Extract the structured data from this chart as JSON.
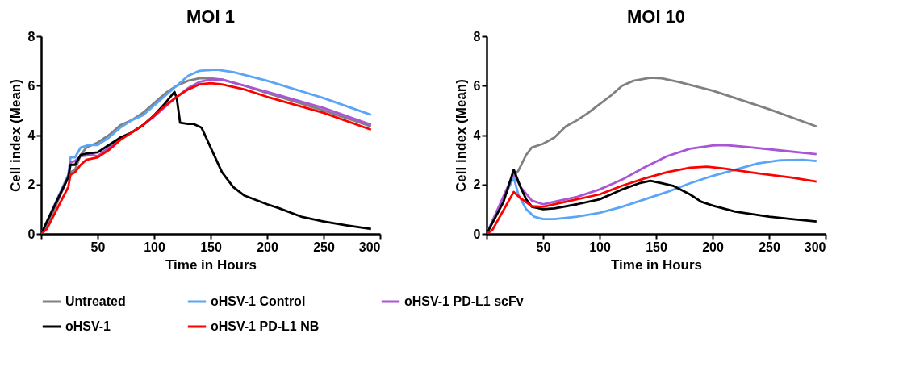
{
  "chart_data": [
    {
      "type": "line",
      "title": "MOI 1",
      "xlabel": "Time in Hours",
      "ylabel": "Cell index (Mean)",
      "xlim": [
        0,
        300
      ],
      "ylim": [
        0,
        8
      ],
      "xticks": [
        {
          "value": 0,
          "label": null
        },
        50,
        100,
        150,
        200,
        250,
        300
      ],
      "yticks": [
        0,
        2,
        4,
        6,
        8
      ],
      "grid": false,
      "legend": "bottom",
      "line_style": "solid",
      "marker": "none",
      "series": [
        {
          "name": "Untreated",
          "color": "#808080",
          "x": [
            0,
            5,
            24,
            26,
            30,
            35,
            40,
            50,
            60,
            70,
            80,
            90,
            100,
            110,
            120,
            130,
            140,
            150,
            160,
            180,
            200,
            250,
            292
          ],
          "values": [
            0,
            0.3,
            2.3,
            2.5,
            2.6,
            3.2,
            3.5,
            3.7,
            4.0,
            4.4,
            4.6,
            4.9,
            5.3,
            5.7,
            6.0,
            6.2,
            6.3,
            6.3,
            6.25,
            6.0,
            5.7,
            5.0,
            4.35
          ]
        },
        {
          "name": "oHSV-1 Control",
          "color": "#5aa5f5",
          "x": [
            0,
            24,
            26,
            30,
            35,
            42,
            50,
            60,
            70,
            80,
            90,
            100,
            110,
            120,
            130,
            140,
            155,
            170,
            200,
            250,
            292
          ],
          "values": [
            0,
            2.4,
            3.1,
            3.1,
            3.5,
            3.6,
            3.6,
            3.9,
            4.3,
            4.6,
            4.8,
            5.2,
            5.6,
            6.0,
            6.4,
            6.6,
            6.65,
            6.55,
            6.2,
            5.5,
            4.82
          ]
        },
        {
          "name": "oHSV-1 PD-L1 scFv",
          "color": "#a855d6",
          "x": [
            0,
            24,
            26,
            30,
            35,
            45,
            50,
            60,
            70,
            80,
            90,
            100,
            110,
            120,
            130,
            140,
            150,
            160,
            180,
            200,
            250,
            292
          ],
          "values": [
            0,
            2.3,
            2.9,
            2.95,
            3.15,
            3.2,
            3.15,
            3.5,
            3.9,
            4.1,
            4.4,
            4.75,
            5.15,
            5.55,
            5.9,
            6.15,
            6.25,
            6.25,
            6.0,
            5.75,
            5.1,
            4.42
          ]
        },
        {
          "name": "oHSV-1",
          "color": "#000000",
          "x": [
            0,
            24,
            26,
            30,
            35,
            40,
            50,
            60,
            70,
            80,
            90,
            100,
            110,
            118,
            120,
            123,
            130,
            135,
            142,
            150,
            160,
            170,
            180,
            200,
            210,
            230,
            250,
            270,
            292
          ],
          "values": [
            0,
            2.3,
            2.8,
            2.8,
            3.2,
            3.25,
            3.3,
            3.6,
            3.9,
            4.1,
            4.4,
            4.8,
            5.3,
            5.75,
            5.5,
            4.5,
            4.45,
            4.45,
            4.3,
            3.5,
            2.5,
            1.9,
            1.55,
            1.2,
            1.05,
            0.7,
            0.5,
            0.35,
            0.2
          ]
        },
        {
          "name": "oHSV-1 PD-L1 NB",
          "color": "#ff0000",
          "x": [
            0,
            5,
            24,
            26,
            30,
            35,
            40,
            50,
            60,
            70,
            80,
            90,
            100,
            110,
            120,
            130,
            140,
            150,
            160,
            180,
            200,
            250,
            292
          ],
          "values": [
            0,
            0.2,
            1.9,
            2.4,
            2.5,
            2.8,
            3.0,
            3.1,
            3.4,
            3.8,
            4.1,
            4.4,
            4.8,
            5.2,
            5.55,
            5.85,
            6.05,
            6.1,
            6.05,
            5.85,
            5.55,
            4.9,
            4.22
          ]
        }
      ]
    },
    {
      "type": "line",
      "title": "MOI 10",
      "xlabel": "Time in Hours",
      "ylabel": "Cell index (Mean)",
      "xlim": [
        0,
        300
      ],
      "ylim": [
        0,
        8
      ],
      "xticks": [
        {
          "value": 0,
          "label": null
        },
        50,
        100,
        150,
        200,
        250,
        300
      ],
      "yticks": [
        0,
        2,
        4,
        6,
        8
      ],
      "grid": false,
      "legend": "bottom",
      "line_style": "solid",
      "marker": "none",
      "series": [
        {
          "name": "Untreated",
          "color": "#808080",
          "x": [
            0,
            25,
            28,
            35,
            40,
            50,
            60,
            70,
            80,
            90,
            100,
            110,
            120,
            130,
            145,
            155,
            170,
            200,
            250,
            292
          ],
          "values": [
            0,
            2.4,
            2.55,
            3.2,
            3.5,
            3.65,
            3.9,
            4.35,
            4.6,
            4.9,
            5.25,
            5.6,
            6.0,
            6.2,
            6.32,
            6.3,
            6.15,
            5.8,
            5.05,
            4.35
          ]
        },
        {
          "name": "oHSV-1 Control",
          "color": "#5aa5f5",
          "x": [
            0,
            24,
            28,
            35,
            42,
            50,
            60,
            80,
            100,
            120,
            140,
            160,
            180,
            200,
            220,
            240,
            260,
            280,
            292
          ],
          "values": [
            0,
            2.3,
            1.6,
            1.0,
            0.7,
            0.6,
            0.6,
            0.7,
            0.85,
            1.1,
            1.4,
            1.7,
            2.05,
            2.35,
            2.6,
            2.85,
            2.98,
            3.0,
            2.95
          ]
        },
        {
          "name": "oHSV-1 PD-L1 scFv",
          "color": "#a855d6",
          "x": [
            0,
            24,
            30,
            40,
            50,
            60,
            80,
            100,
            120,
            140,
            160,
            180,
            200,
            210,
            230,
            260,
            292
          ],
          "values": [
            0,
            2.45,
            1.9,
            1.35,
            1.2,
            1.3,
            1.5,
            1.8,
            2.2,
            2.7,
            3.15,
            3.45,
            3.58,
            3.6,
            3.52,
            3.38,
            3.23
          ]
        },
        {
          "name": "oHSV-1",
          "color": "#000000",
          "x": [
            0,
            15,
            24,
            30,
            35,
            40,
            50,
            60,
            80,
            100,
            120,
            135,
            145,
            155,
            165,
            180,
            190,
            200,
            220,
            250,
            270,
            292
          ],
          "values": [
            0,
            1.3,
            2.6,
            1.9,
            1.4,
            1.1,
            1.0,
            1.03,
            1.2,
            1.4,
            1.8,
            2.05,
            2.15,
            2.05,
            1.95,
            1.6,
            1.3,
            1.15,
            0.9,
            0.7,
            0.6,
            0.5
          ]
        },
        {
          "name": "oHSV-1 PD-L1 NB",
          "color": "#ff0000",
          "x": [
            0,
            5,
            24,
            30,
            40,
            50,
            70,
            100,
            120,
            140,
            160,
            180,
            195,
            210,
            240,
            270,
            292
          ],
          "values": [
            0,
            0.15,
            1.7,
            1.45,
            1.12,
            1.1,
            1.3,
            1.6,
            1.95,
            2.25,
            2.5,
            2.68,
            2.72,
            2.65,
            2.45,
            2.28,
            2.12
          ]
        }
      ]
    }
  ]
}
